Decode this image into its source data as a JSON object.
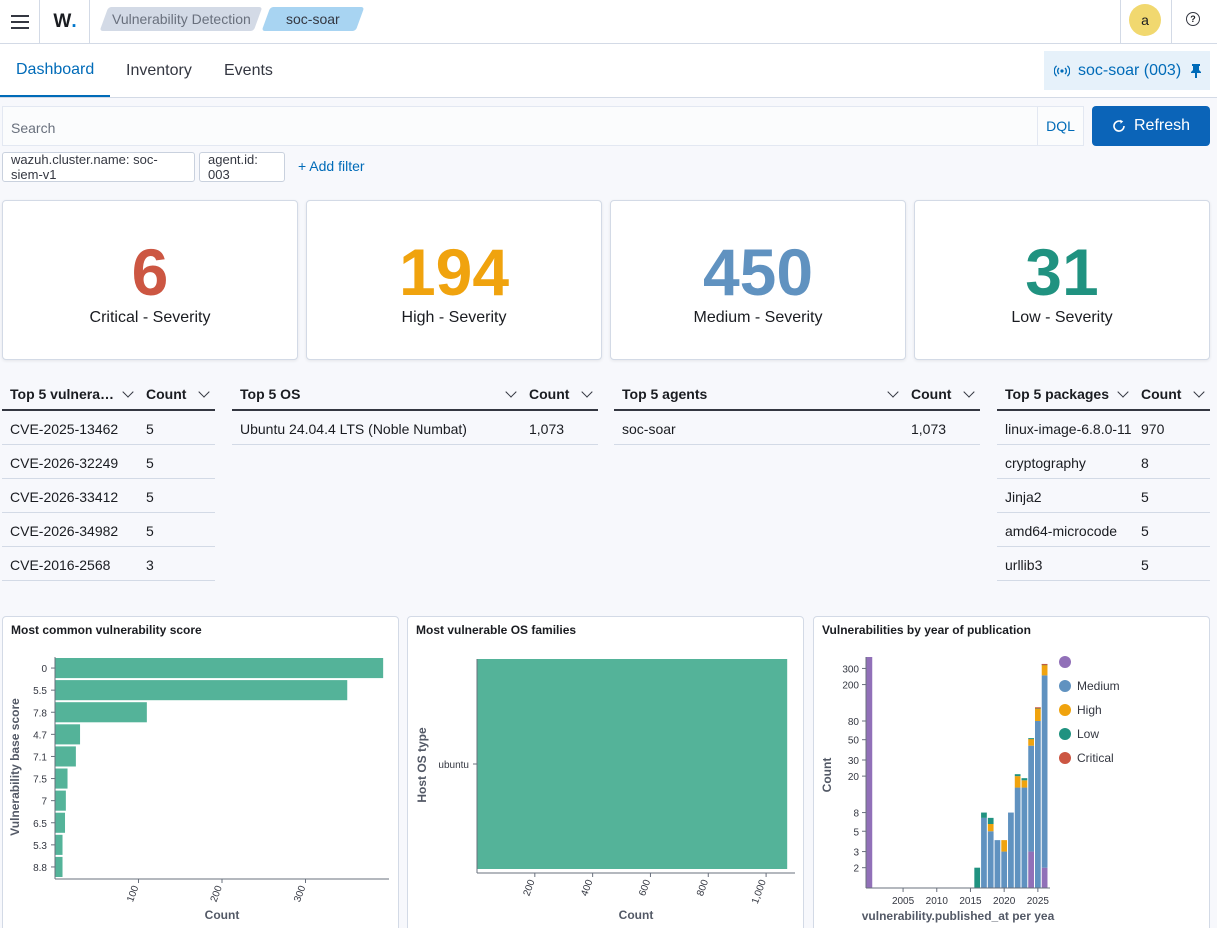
{
  "header": {
    "logo_text": "W",
    "logo_dot": ".",
    "breadcrumbs": [
      "Vulnerability Detection",
      "soc-soar"
    ],
    "avatar_initial": "a",
    "help_glyph": "?"
  },
  "tabs": [
    {
      "label": "Dashboard",
      "active": true
    },
    {
      "label": "Inventory",
      "active": false
    },
    {
      "label": "Events",
      "active": false
    }
  ],
  "agent_pill": {
    "label": "soc-soar (003)"
  },
  "search": {
    "placeholder": "Search",
    "dql": "DQL",
    "refresh": "Refresh"
  },
  "filters": [
    "wazuh.cluster.name: soc-siem-v1",
    "agent.id: 003"
  ],
  "add_filter": "+ Add filter",
  "metrics": [
    {
      "value": "6",
      "label": "Critical - Severity",
      "color": "#cc5642"
    },
    {
      "value": "194",
      "label": "High - Severity",
      "color": "#f0a30e"
    },
    {
      "value": "450",
      "label": "Medium - Severity",
      "color": "#6092c0"
    },
    {
      "value": "31",
      "label": "Low - Severity",
      "color": "#209280"
    }
  ],
  "tables": {
    "vulns": {
      "col1": "Top 5 vulnera…",
      "col2": "Count",
      "rows": [
        [
          "CVE-2025-13462",
          "5"
        ],
        [
          "CVE-2026-32249",
          "5"
        ],
        [
          "CVE-2026-33412",
          "5"
        ],
        [
          "CVE-2026-34982",
          "5"
        ],
        [
          "CVE-2016-2568",
          "3"
        ]
      ]
    },
    "os": {
      "col1": "Top 5 OS",
      "col2": "Count",
      "rows": [
        [
          "Ubuntu 24.04.4 LTS (Noble Numbat)",
          "1,073"
        ]
      ]
    },
    "agents": {
      "col1": "Top 5 agents",
      "col2": "Count",
      "rows": [
        [
          "soc-soar",
          "1,073"
        ]
      ]
    },
    "packages": {
      "col1": "Top 5 packages",
      "col2": "Count",
      "rows": [
        [
          "linux-image-6.8.0-11",
          "970"
        ],
        [
          "cryptography",
          "8"
        ],
        [
          "Jinja2",
          "5"
        ],
        [
          "amd64-microcode",
          "5"
        ],
        [
          "urllib3",
          "5"
        ]
      ]
    }
  },
  "chart_data": [
    {
      "type": "bar",
      "orientation": "horizontal",
      "title": "Most common vulnerability score",
      "xlabel": "Count",
      "ylabel": "Vulnerability base score",
      "categories": [
        "0",
        "5.5",
        "7.8",
        "4.7",
        "7.1",
        "7.5",
        "7",
        "6.5",
        "5.3",
        "8.8"
      ],
      "values": [
        393,
        350,
        110,
        30,
        25,
        15,
        13,
        12,
        9,
        9
      ],
      "xticks": [
        "100",
        "200",
        "300"
      ],
      "xlim": [
        0,
        400
      ],
      "color": "#54b399"
    },
    {
      "type": "bar",
      "orientation": "vertical",
      "title": "Most vulnerable OS families",
      "xlabel": "Count",
      "ylabel": "Host OS type",
      "categories": [
        "ubuntu"
      ],
      "values": [
        1073
      ],
      "xticks": [
        "200",
        "400",
        "600",
        "800",
        "1,000"
      ],
      "xlim": [
        0,
        1100
      ],
      "color": "#54b399"
    },
    {
      "type": "bar",
      "stacked": true,
      "title": "Vulnerabilities by year of publication",
      "xlabel": "vulnerability.published_at per yea",
      "ylabel": "Count",
      "y_scale": "log",
      "yticks": [
        "2",
        "3",
        "5",
        "8",
        "20",
        "30",
        "50",
        "80",
        "200",
        "300"
      ],
      "xticks": [
        "2005",
        "2010",
        "2015",
        "2020",
        "2025"
      ],
      "legend": [
        "",
        "Medium",
        "High",
        "Low",
        "Critical"
      ],
      "legend_colors": [
        "#9170b8",
        "#6092c0",
        "#f0a30e",
        "#209280",
        "#cc5642"
      ],
      "legend_position": "right",
      "x": [
        2000,
        2016,
        2017,
        2018,
        2019,
        2020,
        2021,
        2022,
        2023,
        2024,
        2025,
        2026
      ],
      "series": [
        {
          "name": "",
          "values": [
            400,
            0,
            0,
            0,
            0,
            0,
            0,
            0,
            0,
            3,
            0,
            2
          ]
        },
        {
          "name": "Medium",
          "values": [
            0,
            0,
            7,
            5,
            4,
            3,
            8,
            15,
            15,
            40,
            80,
            250
          ]
        },
        {
          "name": "High",
          "values": [
            0,
            0,
            0,
            1,
            0,
            1,
            0,
            5,
            3,
            8,
            30,
            80
          ]
        },
        {
          "name": "Low",
          "values": [
            0,
            2,
            1,
            1,
            0,
            0,
            0,
            1,
            1,
            1,
            2,
            2
          ]
        },
        {
          "name": "Critical",
          "values": [
            0,
            0,
            0,
            0,
            0,
            0,
            0,
            0,
            0,
            0,
            1,
            2
          ]
        }
      ]
    }
  ]
}
